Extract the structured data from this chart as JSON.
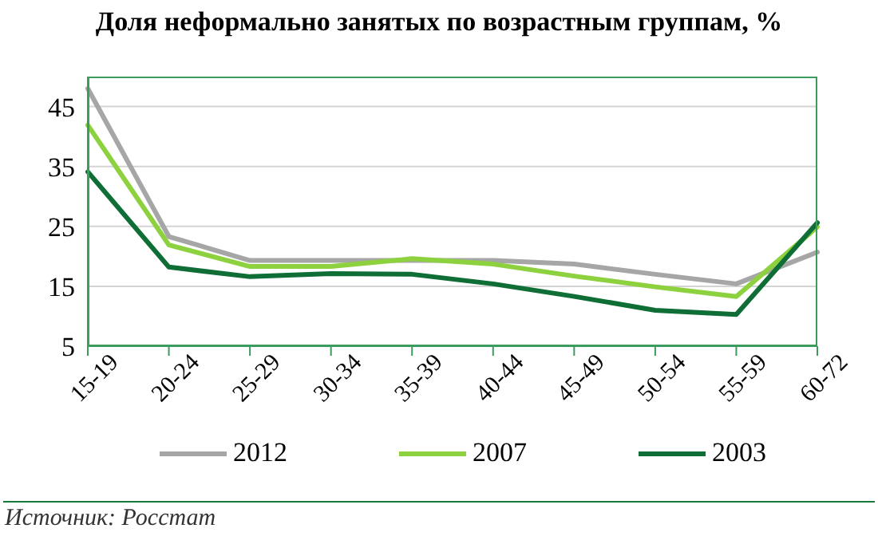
{
  "chart_data": {
    "type": "line",
    "title": "Доля неформально занятых по возрастным группам, %",
    "categories": [
      "15-19",
      "20-24",
      "25-29",
      "30-34",
      "35-39",
      "40-44",
      "45-49",
      "50-54",
      "55-59",
      "60-72"
    ],
    "series": [
      {
        "name": "2012",
        "color": "#a6a6a6",
        "values": [
          48,
          23.3,
          19.3,
          19.3,
          19.3,
          19.3,
          18.7,
          17,
          15.4,
          20.7
        ]
      },
      {
        "name": "2007",
        "color": "#8dd13f",
        "values": [
          41.9,
          21.9,
          18.3,
          18.3,
          19.6,
          18.7,
          16.7,
          14.9,
          13.3,
          24.9
        ]
      },
      {
        "name": "2003",
        "color": "#0e6e35",
        "values": [
          34.1,
          18.2,
          16.6,
          17.1,
          17,
          15.4,
          13.3,
          11,
          10.3,
          25.6
        ]
      }
    ],
    "ylim": [
      5,
      50
    ],
    "yticks": [
      5,
      15,
      25,
      35,
      45
    ],
    "grid": "y",
    "legend": "bottom",
    "marker": "none",
    "line_style": "solid",
    "annotations": [
      "Источник: Росстат"
    ]
  }
}
